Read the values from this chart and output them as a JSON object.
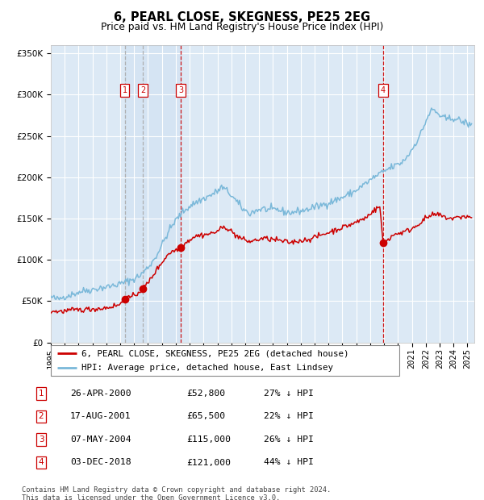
{
  "title": "6, PEARL CLOSE, SKEGNESS, PE25 2EG",
  "subtitle": "Price paid vs. HM Land Registry's House Price Index (HPI)",
  "ylim": [
    0,
    360000
  ],
  "xlim_start": 1995.0,
  "xlim_end": 2025.5,
  "background_color": "#dce9f5",
  "grid_color": "#ffffff",
  "hpi_line_color": "#7ab8d9",
  "price_line_color": "#cc0000",
  "transactions": [
    {
      "date_num": 2000.32,
      "price": 52800,
      "label": "1"
    },
    {
      "date_num": 2001.63,
      "price": 65500,
      "label": "2"
    },
    {
      "date_num": 2004.35,
      "price": 115000,
      "label": "3"
    },
    {
      "date_num": 2018.92,
      "price": 121000,
      "label": "4"
    }
  ],
  "legend_entries": [
    "6, PEARL CLOSE, SKEGNESS, PE25 2EG (detached house)",
    "HPI: Average price, detached house, East Lindsey"
  ],
  "table_rows": [
    [
      "1",
      "26-APR-2000",
      "£52,800",
      "27% ↓ HPI"
    ],
    [
      "2",
      "17-AUG-2001",
      "£65,500",
      "22% ↓ HPI"
    ],
    [
      "3",
      "07-MAY-2004",
      "£115,000",
      "26% ↓ HPI"
    ],
    [
      "4",
      "03-DEC-2018",
      "£121,000",
      "44% ↓ HPI"
    ]
  ],
  "footnote": "Contains HM Land Registry data © Crown copyright and database right 2024.\nThis data is licensed under the Open Government Licence v3.0."
}
